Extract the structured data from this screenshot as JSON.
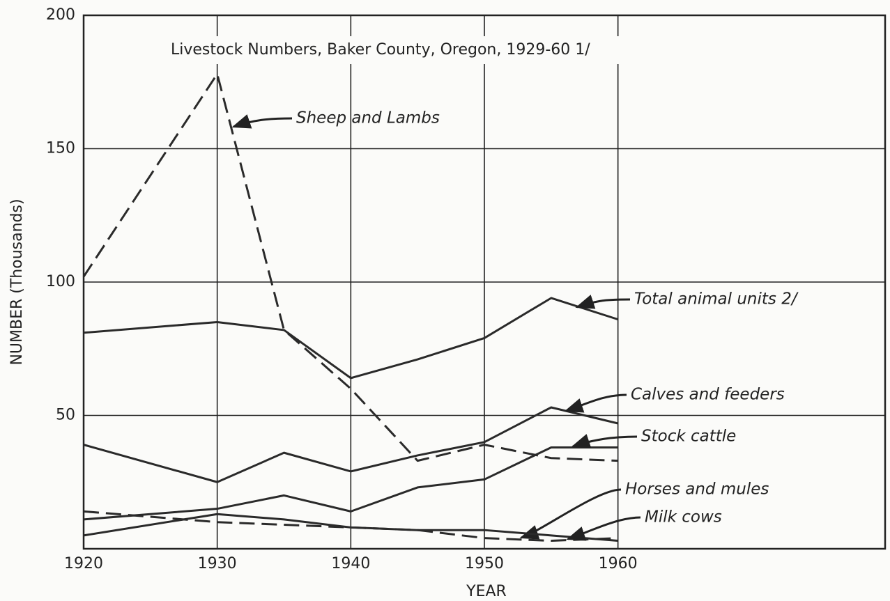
{
  "chart_data": {
    "type": "line",
    "title": "Livestock Numbers, Baker County, Oregon, 1929-60 1/",
    "x_label": "YEAR",
    "y_label": "NUMBER (Thousands)",
    "x": [
      1920,
      1930,
      1935,
      1940,
      1945,
      1950,
      1955,
      1960
    ],
    "xlim": [
      1920,
      1980
    ],
    "xticks": [
      1920,
      1930,
      1940,
      1950,
      1960
    ],
    "ylim": [
      0,
      200
    ],
    "yticks": [
      50,
      100,
      150,
      200
    ],
    "grid": true,
    "series": [
      {
        "name": "Sheep and Lambs",
        "color": "#2a2a2a",
        "dashed": true,
        "values": [
          102,
          178,
          82,
          60,
          33,
          39,
          34,
          33
        ]
      },
      {
        "name": "Total animal units 2/",
        "color": "#2a2a2a",
        "dashed": false,
        "values": [
          81,
          85,
          82,
          64,
          71,
          79,
          94,
          86
        ]
      },
      {
        "name": "Calves and feeders",
        "color": "#2a2a2a",
        "dashed": false,
        "values": [
          39,
          25,
          36,
          29,
          35,
          40,
          53,
          47
        ]
      },
      {
        "name": "Stock cattle",
        "color": "#2a2a2a",
        "dashed": false,
        "values": [
          11,
          15,
          20,
          14,
          23,
          26,
          38,
          38
        ]
      },
      {
        "name": "Horses and mules",
        "color": "#2a2a2a",
        "dashed": true,
        "values": [
          14,
          10,
          9,
          8,
          7,
          4,
          3,
          4
        ]
      },
      {
        "name": "Milk cows",
        "color": "#2a2a2a",
        "dashed": false,
        "values": [
          5,
          13,
          11,
          8,
          7,
          7,
          5,
          3
        ]
      }
    ]
  }
}
